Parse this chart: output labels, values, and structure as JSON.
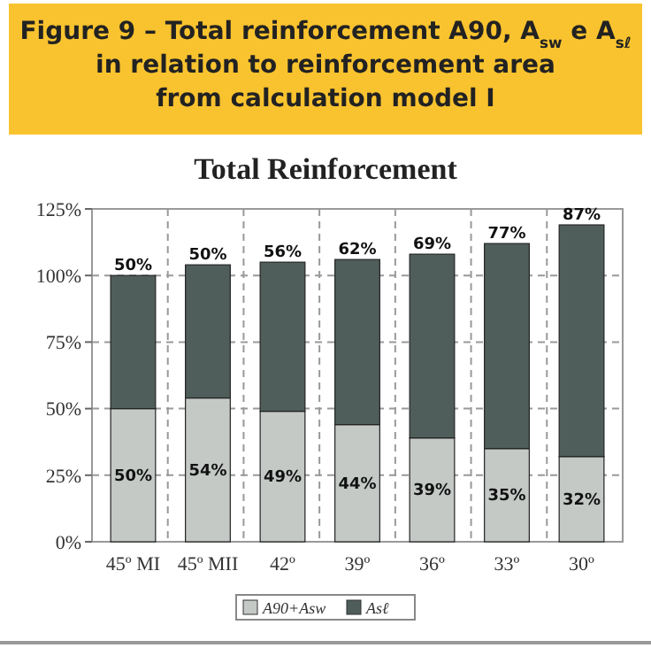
{
  "chart_data": {
    "type": "bar",
    "title": "Figure 9 – Total reinforcement A90, A$_{sw}$ e A$_{sℓ}$\nin relation to reinforcement area\nfrom calculation model I",
    "subtitle": "Total Reinforcement",
    "categories": [
      "45º MI",
      "45º MII",
      "42º",
      "39º",
      "36º",
      "33º",
      "30º"
    ],
    "series": [
      {
        "name": "A90+Asw",
        "color": "#c4c9c6",
        "values": [
          50,
          54,
          49,
          44,
          39,
          35,
          32
        ],
        "value_labels": [
          "50%",
          "54%",
          "49%",
          "44%",
          "39%",
          "35%",
          "32%"
        ]
      },
      {
        "name": "Asℓ",
        "color": "#4f5e5b",
        "values": [
          50,
          50,
          56,
          62,
          69,
          77,
          87
        ],
        "value_labels": [
          "50%",
          "50%",
          "56%",
          "62%",
          "69%",
          "77%",
          "87%"
        ]
      }
    ],
    "stacked": true,
    "ylim": [
      0,
      125
    ],
    "yticks": [
      {
        "value": 0,
        "label": "0%"
      },
      {
        "value": 25,
        "label": "25%"
      },
      {
        "value": 50,
        "label": "50%"
      },
      {
        "value": 75,
        "label": "75%"
      },
      {
        "value": 100,
        "label": "100%"
      },
      {
        "value": 125,
        "label": "125%"
      }
    ],
    "grid": true,
    "legend": "bottom"
  }
}
